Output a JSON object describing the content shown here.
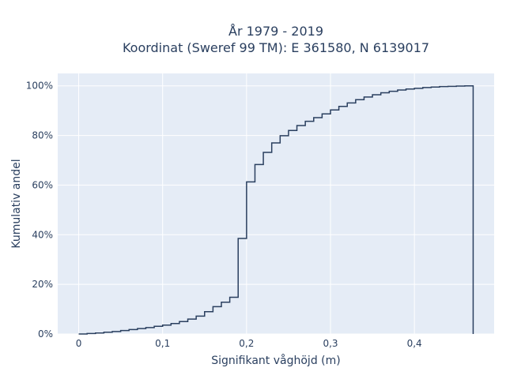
{
  "chart_data": {
    "type": "line",
    "line_shape": "step",
    "title": [
      "År 1979 - 2019",
      "Koordinat (Sweref 99 TM): E 361580, N 6139017"
    ],
    "xlabel": "Signifikant våghöjd (m)",
    "ylabel": "Kumulativ andel",
    "xlim": [
      -0.025,
      0.495
    ],
    "ylim": [
      0,
      1.05
    ],
    "x_ticks": [
      0,
      0.1,
      0.2,
      0.3,
      0.4
    ],
    "x_tick_labels": [
      "0",
      "0,1",
      "0,2",
      "0,3",
      "0,4"
    ],
    "y_ticks": [
      0,
      0.2,
      0.4,
      0.6,
      0.8,
      1.0
    ],
    "y_tick_labels": [
      "0%",
      "20%",
      "40%",
      "60%",
      "80%",
      "100%"
    ],
    "grid": true,
    "legend": "none",
    "colors": {
      "plot_background": "#e5ecf6",
      "grid": "#ffffff",
      "line": "#2a3f5f",
      "text": "#2a3f5f"
    },
    "series": [
      {
        "x": [
          0,
          0.01,
          0.02,
          0.03,
          0.04,
          0.05,
          0.06,
          0.07,
          0.08,
          0.09,
          0.1,
          0.11,
          0.12,
          0.13,
          0.14,
          0.15,
          0.16,
          0.17,
          0.18,
          0.19,
          0.2,
          0.21,
          0.22,
          0.23,
          0.24,
          0.25,
          0.26,
          0.27,
          0.28,
          0.29,
          0.3,
          0.31,
          0.32,
          0.33,
          0.34,
          0.35,
          0.36,
          0.37,
          0.38,
          0.39,
          0.4,
          0.41,
          0.42,
          0.43,
          0.44,
          0.45,
          0.46,
          0.47,
          0.47
        ],
        "y": [
          0.0,
          0.002,
          0.004,
          0.007,
          0.01,
          0.014,
          0.018,
          0.022,
          0.026,
          0.031,
          0.036,
          0.042,
          0.05,
          0.06,
          0.072,
          0.09,
          0.11,
          0.128,
          0.148,
          0.385,
          0.613,
          0.683,
          0.732,
          0.77,
          0.799,
          0.82,
          0.84,
          0.857,
          0.872,
          0.887,
          0.903,
          0.917,
          0.931,
          0.944,
          0.955,
          0.964,
          0.972,
          0.978,
          0.983,
          0.987,
          0.99,
          0.993,
          0.995,
          0.997,
          0.998,
          0.999,
          1.0,
          1.0,
          0.0
        ]
      }
    ]
  }
}
